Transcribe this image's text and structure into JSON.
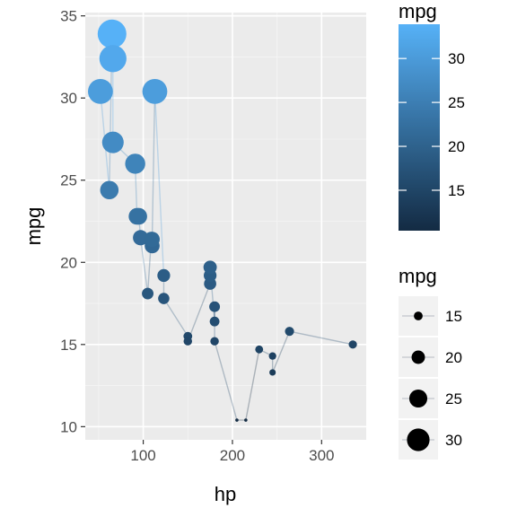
{
  "chart_data": {
    "type": "scatter",
    "connected": true,
    "xlabel": "hp",
    "ylabel": "mpg",
    "xlim": [
      35,
      350
    ],
    "ylim": [
      9.2,
      35.2
    ],
    "x_ticks": [
      100,
      200,
      300
    ],
    "y_ticks": [
      10,
      15,
      20,
      25,
      30,
      35
    ],
    "grid": true,
    "color_legend": {
      "title": "mpg",
      "ticks": [
        15,
        20,
        25,
        30
      ],
      "range": [
        10.4,
        33.9
      ],
      "low_color": "#132B43",
      "high_color": "#56B1F7"
    },
    "size_legend": {
      "title": "mpg",
      "values": [
        15,
        20,
        25,
        30
      ]
    },
    "points": [
      {
        "hp": 52,
        "mpg": 30.4
      },
      {
        "hp": 62,
        "mpg": 24.4
      },
      {
        "hp": 65,
        "mpg": 33.9
      },
      {
        "hp": 66,
        "mpg": 32.4
      },
      {
        "hp": 66,
        "mpg": 27.3
      },
      {
        "hp": 91,
        "mpg": 26.0
      },
      {
        "hp": 93,
        "mpg": 22.8
      },
      {
        "hp": 95,
        "mpg": 22.8
      },
      {
        "hp": 97,
        "mpg": 21.5
      },
      {
        "hp": 105,
        "mpg": 18.1
      },
      {
        "hp": 109,
        "mpg": 21.4
      },
      {
        "hp": 110,
        "mpg": 21.0
      },
      {
        "hp": 110,
        "mpg": 21.0
      },
      {
        "hp": 110,
        "mpg": 21.4
      },
      {
        "hp": 113,
        "mpg": 30.4
      },
      {
        "hp": 123,
        "mpg": 19.2
      },
      {
        "hp": 123,
        "mpg": 17.8
      },
      {
        "hp": 150,
        "mpg": 15.5
      },
      {
        "hp": 150,
        "mpg": 15.2
      },
      {
        "hp": 175,
        "mpg": 18.7
      },
      {
        "hp": 175,
        "mpg": 19.2
      },
      {
        "hp": 175,
        "mpg": 19.7
      },
      {
        "hp": 180,
        "mpg": 16.4
      },
      {
        "hp": 180,
        "mpg": 17.3
      },
      {
        "hp": 180,
        "mpg": 15.2
      },
      {
        "hp": 205,
        "mpg": 10.4
      },
      {
        "hp": 215,
        "mpg": 10.4
      },
      {
        "hp": 230,
        "mpg": 14.7
      },
      {
        "hp": 245,
        "mpg": 14.3
      },
      {
        "hp": 245,
        "mpg": 13.3
      },
      {
        "hp": 264,
        "mpg": 15.8
      },
      {
        "hp": 335,
        "mpg": 15.0
      }
    ]
  }
}
